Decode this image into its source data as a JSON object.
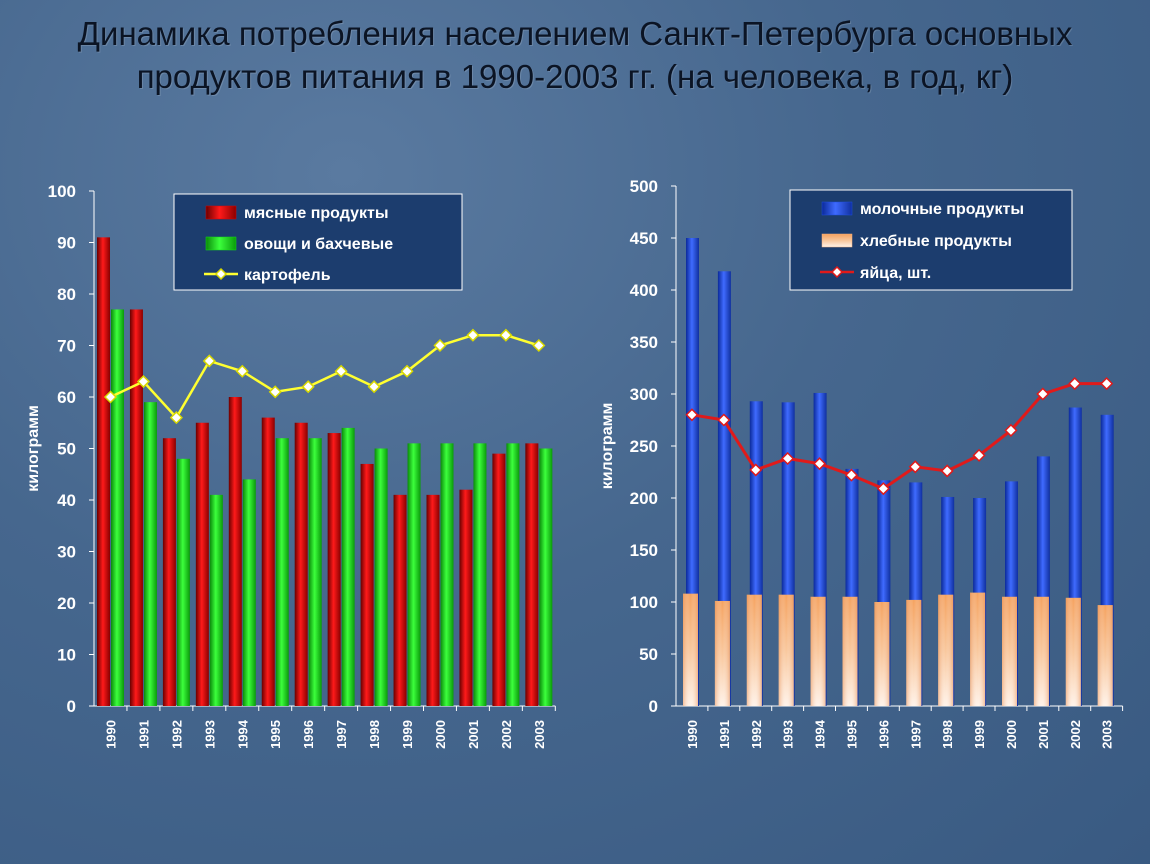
{
  "title": {
    "line1": "Динамика потребления населением Санкт-Петербурга основных",
    "line2": "продуктов питания в 1990-2003 гг. (на человека, в год, кг)"
  },
  "colors": {
    "meat": "#e00000",
    "vegetables": "#12e012",
    "potato": "#ffff30",
    "dairy": "#1f4fe0",
    "bread": "#f6b07c",
    "eggs": "#e01a1a"
  },
  "chart_data": [
    {
      "type": "bar",
      "ylabel": "килограмм",
      "ylim": [
        0,
        100
      ],
      "yticks": [
        0,
        10,
        20,
        30,
        40,
        50,
        60,
        70,
        80,
        90,
        100
      ],
      "categories": [
        "1990",
        "1991",
        "1992",
        "1993",
        "1994",
        "1995",
        "1996",
        "1997",
        "1998",
        "1999",
        "2000",
        "2001",
        "2002",
        "2003"
      ],
      "series": [
        {
          "name": "мясные продукты",
          "kind": "bar",
          "color_key": "meat",
          "values": [
            91,
            77,
            52,
            55,
            60,
            56,
            55,
            53,
            47,
            41,
            41,
            42,
            49,
            51
          ]
        },
        {
          "name": "овощи и бахчевые",
          "kind": "bar",
          "color_key": "vegetables",
          "values": [
            77,
            59,
            48,
            41,
            44,
            52,
            52,
            54,
            50,
            51,
            51,
            51,
            51,
            50
          ]
        },
        {
          "name": "картофель",
          "kind": "line",
          "color_key": "potato",
          "values": [
            60,
            63,
            56,
            67,
            65,
            61,
            62,
            65,
            62,
            65,
            70,
            72,
            72,
            70
          ]
        }
      ],
      "legend": "top-center",
      "grid": false
    },
    {
      "type": "bar",
      "ylabel": "килограмм",
      "ylim": [
        0,
        500
      ],
      "yticks": [
        0,
        50,
        100,
        150,
        200,
        250,
        300,
        350,
        400,
        450,
        500
      ],
      "categories": [
        "1990",
        "1991",
        "1992",
        "1993",
        "1994",
        "1995",
        "1996",
        "1997",
        "1998",
        "1999",
        "2000",
        "2001",
        "2002",
        "2003"
      ],
      "series": [
        {
          "name": "молочные продукты",
          "kind": "bar",
          "color_key": "dairy",
          "values": [
            450,
            418,
            293,
            292,
            301,
            228,
            217,
            215,
            201,
            200,
            216,
            240,
            287,
            280
          ]
        },
        {
          "name": "хлебные  продукты",
          "kind": "bar",
          "color_key": "bread",
          "values": [
            108,
            101,
            107,
            107,
            105,
            105,
            100,
            102,
            107,
            109,
            105,
            105,
            104,
            97
          ]
        },
        {
          "name": "яйца, шт.",
          "kind": "line",
          "color_key": "eggs",
          "values": [
            280,
            275,
            227,
            238,
            233,
            222,
            209,
            230,
            226,
            241,
            265,
            300,
            310,
            310
          ]
        }
      ],
      "legend": "top-center",
      "grid": false
    }
  ]
}
